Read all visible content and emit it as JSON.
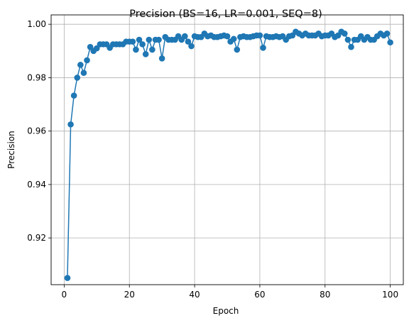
{
  "chart_data": {
    "type": "line",
    "title": "Precision (BS=16, LR=0.001, SEQ=8)",
    "xlabel": "Epoch",
    "ylabel": "Precision",
    "xlim": [
      -4,
      104
    ],
    "ylim": [
      0.9025,
      1.0035
    ],
    "xticks": [
      0,
      20,
      40,
      60,
      80,
      100
    ],
    "yticks": [
      0.92,
      0.94,
      0.96,
      0.98,
      1.0
    ],
    "ytick_labels": [
      "0.92",
      "0.94",
      "0.96",
      "0.98",
      "1.00"
    ],
    "grid": true,
    "marker": "circle",
    "color": "#1f77b4",
    "series": [
      {
        "x": [
          1,
          2,
          3,
          4,
          5,
          6,
          7,
          8,
          9,
          10,
          11,
          12,
          13,
          14,
          15,
          16,
          17,
          18,
          19,
          20,
          21,
          22,
          23,
          24,
          25,
          26,
          27,
          28,
          29,
          30,
          31,
          32,
          33,
          34,
          35,
          36,
          37,
          38,
          39,
          40,
          41,
          42,
          43,
          44,
          45,
          46,
          47,
          48,
          49,
          50,
          51,
          52,
          53,
          54,
          55,
          56,
          57,
          58,
          59,
          60,
          61,
          62,
          63,
          64,
          65,
          66,
          67,
          68,
          69,
          70,
          71,
          72,
          73,
          74,
          75,
          76,
          77,
          78,
          79,
          80,
          81,
          82,
          83,
          84,
          85,
          86,
          87,
          88,
          89,
          90,
          91,
          92,
          93,
          94,
          95,
          96,
          97,
          98,
          99,
          100
        ],
        "values": [
          0.905,
          0.9625,
          0.9733,
          0.98,
          0.9848,
          0.9818,
          0.9865,
          0.9915,
          0.99,
          0.991,
          0.9925,
          0.9925,
          0.9925,
          0.9912,
          0.9925,
          0.9925,
          0.9925,
          0.9925,
          0.9935,
          0.9935,
          0.9935,
          0.9905,
          0.9942,
          0.9925,
          0.9888,
          0.9942,
          0.9905,
          0.9942,
          0.9942,
          0.9872,
          0.9952,
          0.9942,
          0.9942,
          0.9942,
          0.9955,
          0.9942,
          0.9955,
          0.9935,
          0.9918,
          0.9955,
          0.9952,
          0.9952,
          0.9965,
          0.9955,
          0.9958,
          0.9952,
          0.9952,
          0.9955,
          0.9958,
          0.9955,
          0.9935,
          0.9945,
          0.9905,
          0.9952,
          0.9955,
          0.9952,
          0.9952,
          0.9955,
          0.9958,
          0.9958,
          0.9912,
          0.9955,
          0.9952,
          0.9952,
          0.9955,
          0.9952,
          0.9955,
          0.9942,
          0.9955,
          0.9958,
          0.9972,
          0.9965,
          0.9958,
          0.9965,
          0.9958,
          0.9958,
          0.9958,
          0.9965,
          0.9955,
          0.9958,
          0.9958,
          0.9965,
          0.9952,
          0.9958,
          0.9972,
          0.9965,
          0.9942,
          0.9915,
          0.9942,
          0.9942,
          0.9955,
          0.9942,
          0.9952,
          0.9942,
          0.9942,
          0.9955,
          0.9965,
          0.9958,
          0.9965,
          0.9932
        ]
      }
    ]
  }
}
